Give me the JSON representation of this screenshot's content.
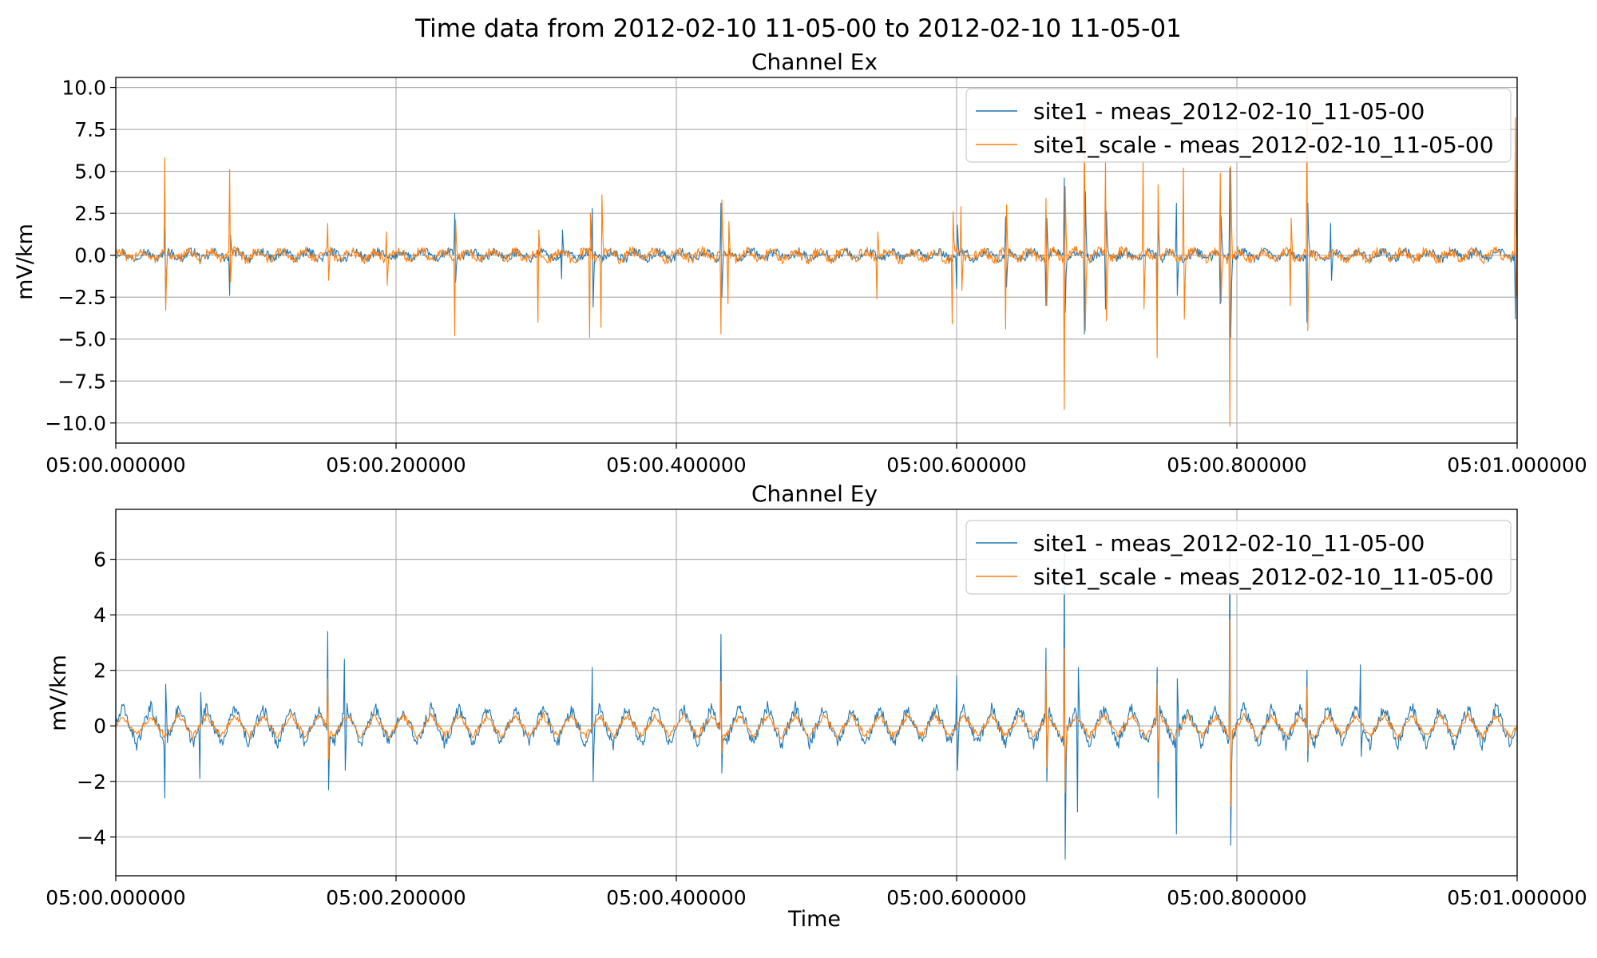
{
  "figure": {
    "title": "Time data from 2012-02-10 11-05-00 to 2012-02-10 11-05-01",
    "xlabel": "Time"
  },
  "colors": {
    "site1": "#1f77b4",
    "site1_scale": "#ff7f0e",
    "grid": "#b0b0b0"
  },
  "chart_data": [
    {
      "type": "line",
      "title": "Channel Ex",
      "ylabel": "mV/km",
      "xlabel": "",
      "x_range": [
        0.0,
        1.0
      ],
      "xlim": [
        "05:00.000000",
        "05:01.000000"
      ],
      "ylim": [
        -11.2,
        10.6
      ],
      "xticks": [
        {
          "value": 0.0,
          "label": "05:00.000000"
        },
        {
          "value": 0.2,
          "label": "05:00.200000"
        },
        {
          "value": 0.4,
          "label": "05:00.400000"
        },
        {
          "value": 0.6,
          "label": "05:00.600000"
        },
        {
          "value": 0.8,
          "label": "05:00.800000"
        },
        {
          "value": 1.0,
          "label": "05:01.000000"
        }
      ],
      "yticks": [
        {
          "value": 10.0,
          "label": "10.0"
        },
        {
          "value": 7.5,
          "label": "7.5"
        },
        {
          "value": 5.0,
          "label": "5.0"
        },
        {
          "value": 2.5,
          "label": "2.5"
        },
        {
          "value": 0.0,
          "label": "0.0"
        },
        {
          "value": -2.5,
          "label": "−2.5"
        },
        {
          "value": -5.0,
          "label": "−5.0"
        },
        {
          "value": -7.5,
          "label": "−7.5"
        },
        {
          "value": -10.0,
          "label": "−10.0"
        }
      ],
      "grid": true,
      "legend_position": "top-right",
      "series": [
        {
          "name": "site1 - meas_2012-02-10_11-05-00",
          "color_key": "site1",
          "baseline": {
            "amplitude": 0.35,
            "noise": 0.25
          },
          "spikes": [
            [
              0.035,
              1.6,
              -2.9
            ],
            [
              0.081,
              -2.4,
              1.2
            ],
            [
              0.242,
              2.5,
              -1.6
            ],
            [
              0.318,
              -1.4,
              1.5
            ],
            [
              0.34,
              2.8,
              -3.1
            ],
            [
              0.432,
              3.1,
              -2.5
            ],
            [
              0.6,
              -2.0,
              1.8
            ],
            [
              0.635,
              2.3,
              -1.9
            ],
            [
              0.664,
              -3.0,
              2.2
            ],
            [
              0.677,
              4.6,
              -3.4
            ],
            [
              0.691,
              -4.7,
              3.8
            ],
            [
              0.706,
              -3.2,
              2.6
            ],
            [
              0.743,
              -2.7,
              2.2
            ],
            [
              0.757,
              3.1,
              -2.4
            ],
            [
              0.788,
              -2.9,
              2.3
            ],
            [
              0.795,
              5.2,
              -4.9
            ],
            [
              0.85,
              -4.0,
              3.1
            ],
            [
              0.867,
              1.9,
              -1.5
            ],
            [
              0.999,
              -3.8,
              2.7
            ]
          ]
        },
        {
          "name": "site1_scale - meas_2012-02-10_11-05-00",
          "color_key": "site1_scale",
          "baseline": {
            "amplitude": 0.4,
            "noise": 0.3
          },
          "spikes": [
            [
              0.035,
              5.8,
              -3.3
            ],
            [
              0.081,
              5.1,
              -1.6
            ],
            [
              0.151,
              1.9,
              -1.5
            ],
            [
              0.193,
              1.4,
              -1.8
            ],
            [
              0.242,
              -4.8,
              2.1
            ],
            [
              0.301,
              -4.0,
              1.5
            ],
            [
              0.338,
              -4.9,
              2.5
            ],
            [
              0.346,
              -4.3,
              3.6
            ],
            [
              0.432,
              -4.7,
              3.3
            ],
            [
              0.437,
              -2.9,
              2.0
            ],
            [
              0.543,
              -2.6,
              1.4
            ],
            [
              0.597,
              -4.1,
              2.6
            ],
            [
              0.603,
              2.9,
              -2.1
            ],
            [
              0.635,
              -4.4,
              3.0
            ],
            [
              0.664,
              3.4,
              -3.0
            ],
            [
              0.677,
              -9.2,
              4.1
            ],
            [
              0.691,
              8.4,
              -4.5
            ],
            [
              0.706,
              5.8,
              -3.9
            ],
            [
              0.733,
              5.7,
              -3.2
            ],
            [
              0.743,
              -6.1,
              4.2
            ],
            [
              0.762,
              5.2,
              -3.8
            ],
            [
              0.788,
              4.9,
              -2.8
            ],
            [
              0.795,
              -10.2,
              5.3
            ],
            [
              0.838,
              -3.0,
              2.2
            ],
            [
              0.85,
              8.1,
              -4.5
            ],
            [
              0.999,
              8.2,
              -2.4
            ]
          ]
        }
      ]
    },
    {
      "type": "line",
      "title": "Channel Ey",
      "ylabel": "mV/km",
      "xlabel": "Time",
      "x_range": [
        0.0,
        1.0
      ],
      "xlim": [
        "05:00.000000",
        "05:01.000000"
      ],
      "ylim": [
        -5.4,
        7.8
      ],
      "xticks": [
        {
          "value": 0.0,
          "label": "05:00.000000"
        },
        {
          "value": 0.2,
          "label": "05:00.200000"
        },
        {
          "value": 0.4,
          "label": "05:00.400000"
        },
        {
          "value": 0.6,
          "label": "05:00.600000"
        },
        {
          "value": 0.8,
          "label": "05:00.800000"
        },
        {
          "value": 1.0,
          "label": "05:01.000000"
        }
      ],
      "yticks": [
        {
          "value": 6,
          "label": "6"
        },
        {
          "value": 4,
          "label": "4"
        },
        {
          "value": 2,
          "label": "2"
        },
        {
          "value": 0,
          "label": "0"
        },
        {
          "value": -2,
          "label": "−2"
        },
        {
          "value": -4,
          "label": "−4"
        }
      ],
      "grid": true,
      "legend_position": "top-right",
      "series": [
        {
          "name": "site1 - meas_2012-02-10_11-05-00",
          "color_key": "site1",
          "baseline": {
            "amplitude": 0.75,
            "noise": 0.22,
            "cycles": 50
          },
          "spikes": [
            [
              0.035,
              -2.6,
              1.5
            ],
            [
              0.06,
              -1.9,
              1.2
            ],
            [
              0.151,
              3.4,
              -2.3
            ],
            [
              0.163,
              2.4,
              -1.6
            ],
            [
              0.34,
              2.1,
              -2.0
            ],
            [
              0.432,
              3.3,
              -1.7
            ],
            [
              0.6,
              1.8,
              -1.6
            ],
            [
              0.664,
              2.8,
              -2.0
            ],
            [
              0.677,
              6.2,
              -4.8
            ],
            [
              0.686,
              -3.1,
              2.1
            ],
            [
              0.743,
              2.1,
              -2.6
            ],
            [
              0.757,
              -3.9,
              1.7
            ],
            [
              0.795,
              6.6,
              -4.3
            ],
            [
              0.85,
              2.0,
              -1.3
            ],
            [
              0.888,
              2.2,
              -1.1
            ]
          ]
        },
        {
          "name": "site1_scale - meas_2012-02-10_11-05-00",
          "color_key": "site1_scale",
          "baseline": {
            "amplitude": 0.42,
            "noise": 0.12,
            "cycles": 50
          },
          "spikes": [
            [
              0.151,
              1.7,
              -1.2
            ],
            [
              0.432,
              1.6,
              -1.0
            ],
            [
              0.664,
              2.0,
              -1.5
            ],
            [
              0.677,
              2.8,
              -2.4
            ],
            [
              0.743,
              1.5,
              -1.3
            ],
            [
              0.795,
              3.8,
              -2.9
            ],
            [
              0.85,
              1.4,
              -0.9
            ]
          ]
        }
      ]
    }
  ]
}
